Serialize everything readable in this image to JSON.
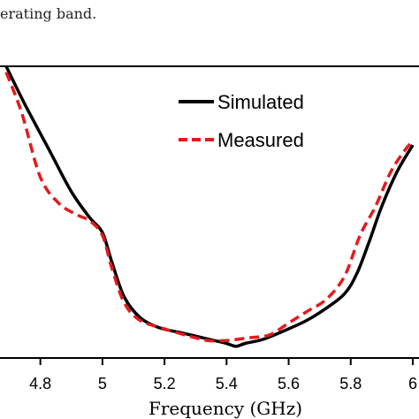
{
  "caption": "erating band.",
  "chart_data": {
    "type": "line",
    "xlabel": "Frequency (GHz)",
    "ylabel": "",
    "xlim": [
      4.67,
      6.02
    ],
    "ylim": [
      0,
      1
    ],
    "x_ticks": [
      "4.8",
      "5",
      "5.2",
      "5.4",
      "5.6",
      "5.8",
      "6"
    ],
    "grid": false,
    "legend_position": "top-right",
    "series": [
      {
        "name": "Simulated",
        "color": "#000000",
        "style": "solid",
        "x": [
          4.69,
          4.75,
          4.83,
          4.9,
          4.96,
          5.0,
          5.03,
          5.07,
          5.12,
          5.18,
          5.26,
          5.34,
          5.4,
          5.43,
          5.46,
          5.52,
          5.6,
          5.66,
          5.72,
          5.78,
          5.82,
          5.86,
          5.9,
          5.95,
          6.0
        ],
        "y": [
          1.0,
          0.87,
          0.71,
          0.57,
          0.48,
          0.43,
          0.33,
          0.21,
          0.14,
          0.105,
          0.085,
          0.065,
          0.05,
          0.04,
          0.05,
          0.065,
          0.1,
          0.13,
          0.17,
          0.22,
          0.29,
          0.4,
          0.52,
          0.64,
          0.73
        ]
      },
      {
        "name": "Measured",
        "color": "#e31a1c",
        "style": "dashed",
        "x": [
          4.69,
          4.74,
          4.8,
          4.86,
          4.92,
          4.96,
          5.0,
          5.03,
          5.07,
          5.12,
          5.2,
          5.28,
          5.34,
          5.4,
          5.44,
          5.48,
          5.54,
          5.6,
          5.66,
          5.72,
          5.78,
          5.83,
          5.88,
          5.93,
          5.98,
          6.0
        ],
        "y": [
          0.98,
          0.84,
          0.62,
          0.53,
          0.49,
          0.47,
          0.42,
          0.31,
          0.19,
          0.13,
          0.1,
          0.075,
          0.06,
          0.06,
          0.065,
          0.07,
          0.08,
          0.12,
          0.16,
          0.2,
          0.28,
          0.42,
          0.52,
          0.64,
          0.72,
          0.74
        ]
      }
    ]
  }
}
